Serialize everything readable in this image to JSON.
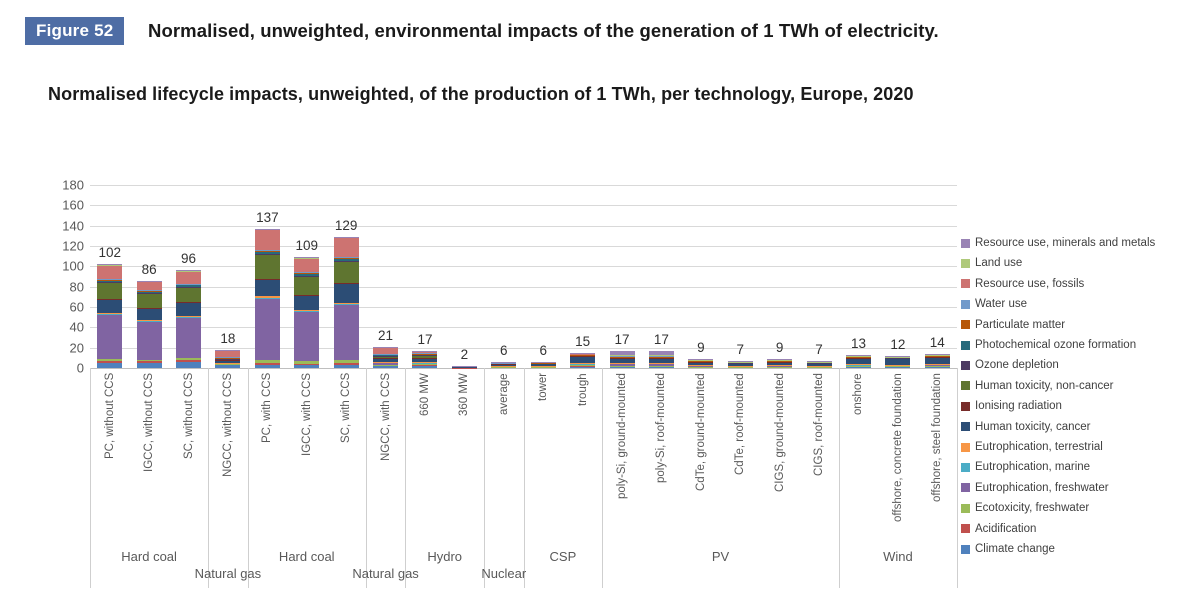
{
  "header": {
    "figure_badge": "Figure 52",
    "title": "Normalised, unweighted, environmental impacts of the generation of 1 TWh of electricity.",
    "subtitle": "Normalised lifecycle impacts, unweighted, of the production of 1 TWh, per technology, Europe, 2020"
  },
  "chart_data": {
    "type": "bar",
    "stacked": true,
    "grid": true,
    "ylim": [
      0,
      180
    ],
    "ytick_step": 20,
    "legend_position": "right",
    "categories": [
      "PC, without CCS",
      "IGCC, without CCS",
      "SC, without CCS",
      "NGCC, without CCS",
      "PC, with CCS",
      "IGCC, with CCS",
      "SC, with CCS",
      "NGCC, with CCS",
      "660 MW",
      "360 MW",
      "average",
      "tower",
      "trough",
      "poly-Si, ground-mounted",
      "poly-Si, roof-mounted",
      "CdTe, ground-mounted",
      "CdTe, roof-mounted",
      "CIGS, ground-mounted",
      "CIGS, roof-mounted",
      "onshore",
      "offshore, concrete foundation",
      "offshore, steel foundation"
    ],
    "groups": [
      {
        "label": "Hard coal",
        "from": 0,
        "to": 2,
        "row": 1
      },
      {
        "label": "Natural gas",
        "from": 3,
        "to": 3,
        "row": 2
      },
      {
        "label": "Hard coal",
        "from": 4,
        "to": 6,
        "row": 1
      },
      {
        "label": "Natural gas",
        "from": 7,
        "to": 7,
        "row": 2
      },
      {
        "label": "Hydro",
        "from": 8,
        "to": 9,
        "row": 1
      },
      {
        "label": "Nuclear",
        "from": 10,
        "to": 10,
        "row": 2
      },
      {
        "label": "CSP",
        "from": 11,
        "to": 12,
        "row": 1
      },
      {
        "label": "PV",
        "from": 13,
        "to": 18,
        "row": 1
      },
      {
        "label": "Wind",
        "from": 19,
        "to": 21,
        "row": 1
      }
    ],
    "bar_totals": [
      102,
      86,
      96,
      18,
      137,
      109,
      129,
      21,
      17,
      2,
      6,
      6,
      15,
      17,
      17,
      9,
      7,
      9,
      7,
      13,
      12,
      14
    ],
    "series_stacking_note_order": "bottom_to_top; legend shown top-to-bottom is the reverse",
    "series": [
      {
        "name": "Climate change",
        "color": "#4F81BD",
        "values": [
          5,
          5,
          5.5,
          3,
          3,
          2.5,
          3,
          2,
          2,
          0.3,
          1,
          1,
          2,
          1.5,
          1.2,
          1,
          0.8,
          1,
          0.8,
          1.5,
          1.5,
          1.7
        ]
      },
      {
        "name": "Acidification",
        "color": "#C0504D",
        "values": [
          2,
          1.5,
          2,
          0.5,
          2,
          1.5,
          2,
          0.5,
          0.5,
          0.1,
          0.2,
          0.2,
          0.3,
          0.4,
          0.4,
          0.2,
          0.2,
          0.2,
          0.2,
          0.3,
          0.3,
          0.3
        ]
      },
      {
        "name": "Ecotoxicity, freshwater",
        "color": "#9BBB59",
        "values": [
          2,
          1.5,
          2,
          0.3,
          3,
          2.5,
          3,
          0.5,
          1,
          0.1,
          0.2,
          0.2,
          0.3,
          0.4,
          0.4,
          0.2,
          0.2,
          0.2,
          0.2,
          0.3,
          0.3,
          0.3
        ]
      },
      {
        "name": "Eutrophication, freshwater",
        "color": "#8064A2",
        "values": [
          44,
          38,
          40,
          1,
          60,
          49,
          54,
          2.5,
          1.5,
          0.3,
          0.5,
          0.5,
          1.5,
          2,
          2.5,
          1,
          0.8,
          1,
          0.8,
          1.2,
          1,
          1.2
        ]
      },
      {
        "name": "Eutrophication, marine",
        "color": "#4BACC6",
        "values": [
          0.5,
          0.5,
          0.5,
          0.2,
          0.5,
          0.5,
          0.5,
          0.3,
          0.2,
          0,
          0.1,
          0.1,
          0.2,
          0.2,
          0.2,
          0.1,
          0.1,
          0.1,
          0.1,
          0.1,
          0.1,
          0.1
        ]
      },
      {
        "name": "Eutrophication, terrestrial",
        "color": "#F79646",
        "values": [
          1,
          1,
          1,
          0.3,
          2,
          1.5,
          1.5,
          0.5,
          0.3,
          0,
          0.1,
          0.1,
          0.2,
          0.2,
          0.2,
          0.1,
          0.1,
          0.1,
          0.1,
          0.1,
          0.1,
          0.1
        ]
      },
      {
        "name": "Human toxicity, cancer",
        "color": "#2C4D75",
        "values": [
          13,
          11,
          13,
          2,
          17,
          14,
          19,
          3,
          4,
          0.5,
          1.5,
          2.5,
          7,
          4.8,
          4.3,
          3.5,
          2.5,
          3.5,
          2.5,
          6.5,
          6,
          7.2
        ]
      },
      {
        "name": "Ionising radiation",
        "color": "#772C2A",
        "values": [
          0.5,
          0.5,
          0.5,
          0.2,
          0.5,
          0.5,
          0.5,
          0.2,
          0.3,
          0,
          0.5,
          0.1,
          0.2,
          0.2,
          0.2,
          0.1,
          0.1,
          0.1,
          0.1,
          0.1,
          0.1,
          0.1
        ]
      },
      {
        "name": "Human toxicity, non-cancer",
        "color": "#5F7530",
        "values": [
          16,
          14,
          15,
          1,
          24,
          18,
          21,
          2,
          3,
          0.3,
          0.5,
          0.4,
          1,
          1,
          1.2,
          0.5,
          0.5,
          0.5,
          0.5,
          0.8,
          0.7,
          0.8
        ]
      },
      {
        "name": "Ozone depletion",
        "color": "#4D3B62",
        "values": [
          0.5,
          0.5,
          0.5,
          0.5,
          0.5,
          0.5,
          0.5,
          0.5,
          0.2,
          0,
          0.1,
          0.1,
          0.1,
          0.1,
          0.1,
          0.1,
          0.1,
          0.1,
          0.1,
          0.1,
          0.1,
          0.1
        ]
      },
      {
        "name": "Photochemical ozone formation",
        "color": "#276A7C",
        "values": [
          1.5,
          1.5,
          1.5,
          1,
          2,
          2,
          2.5,
          1,
          0.5,
          0,
          0.2,
          0.1,
          0.2,
          0.3,
          0.3,
          0.2,
          0.1,
          0.2,
          0.1,
          0.2,
          0.2,
          0.2
        ]
      },
      {
        "name": "Particulate matter",
        "color": "#B65708",
        "values": [
          1,
          1,
          1,
          0.3,
          1.5,
          1,
          1,
          0.3,
          0.5,
          0,
          0.1,
          0.1,
          0.2,
          0.2,
          0.2,
          0.1,
          0.1,
          0.1,
          0.1,
          0.1,
          0.1,
          0.1
        ]
      },
      {
        "name": "Water use",
        "color": "#729ACA",
        "values": [
          0.5,
          0.5,
          0.5,
          0.2,
          0.5,
          0.5,
          0.5,
          0.2,
          0.5,
          0,
          0.3,
          0.3,
          0.5,
          0.5,
          0.5,
          0.3,
          0.2,
          0.3,
          0.2,
          0.2,
          0.2,
          0.2
        ]
      },
      {
        "name": "Resource use, fossils",
        "color": "#CD7371",
        "values": [
          14,
          9,
          12.5,
          7,
          19.5,
          14,
          19,
          7,
          1.5,
          0.2,
          0.5,
          0.1,
          0.5,
          0.5,
          0.6,
          0.3,
          0.3,
          0.3,
          0.3,
          0.3,
          0.3,
          0.4
        ]
      },
      {
        "name": "Land use",
        "color": "#AFC97A",
        "values": [
          0.3,
          0.3,
          0.3,
          0.3,
          0.5,
          0.5,
          0.5,
          0.3,
          0.5,
          0.1,
          0.1,
          0.1,
          0.3,
          0.7,
          0.7,
          0.3,
          0.2,
          0.3,
          0.2,
          0.2,
          0.1,
          0.1
        ]
      },
      {
        "name": "Resource use, minerals and metals",
        "color": "#9983B5",
        "values": [
          0.2,
          0.2,
          0.2,
          0.2,
          0.5,
          0.5,
          0.5,
          0.2,
          0.5,
          0.1,
          0.1,
          0.1,
          0.5,
          4,
          4,
          1,
          0.7,
          1,
          0.7,
          1,
          0.9,
          1.1
        ]
      }
    ]
  }
}
